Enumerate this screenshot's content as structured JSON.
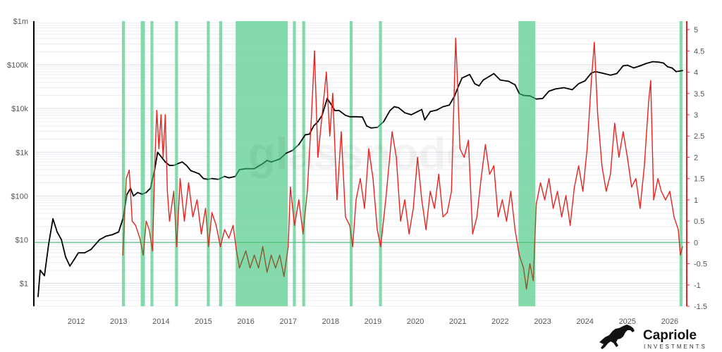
{
  "chart_data": {
    "type": "line",
    "title": "",
    "xlabel": "",
    "ylabel": "",
    "x_ticks": [
      "2012",
      "2013",
      "2014",
      "2015",
      "2016",
      "2017",
      "2018",
      "2019",
      "2020",
      "2021",
      "2022",
      "2023",
      "2024",
      "2025",
      "2026"
    ],
    "xlim": [
      2011.0,
      2026.4
    ],
    "left_axis": {
      "scale": "log",
      "ylim": [
        0.3,
        1000000
      ],
      "tick_values": [
        1,
        10,
        100,
        1000,
        10000,
        100000,
        1000000
      ],
      "tick_labels": [
        "$1",
        "$10",
        "$100",
        "$1k",
        "$10k",
        "$100k",
        "$1m"
      ],
      "color": "#000000"
    },
    "right_axis": {
      "scale": "linear",
      "ylim": [
        -1.5,
        5.2
      ],
      "tick_values": [
        -1.5,
        -1,
        -0.5,
        0,
        0.5,
        1,
        1.5,
        2,
        2.5,
        3,
        3.5,
        4,
        4.5,
        5
      ],
      "tick_labels": [
        "-1.5",
        "-1",
        "-0.5",
        "0",
        "0.5",
        "1",
        "1.5",
        "2",
        "2.5",
        "3",
        "3.5",
        "4",
        "4.5",
        "5"
      ],
      "color": "#e8231f"
    },
    "reference_line": {
      "axis": "right",
      "value": 0,
      "color": "#4cc47a"
    },
    "shaded_regions": [
      [
        2013.08,
        2013.15
      ],
      [
        2013.52,
        2013.62
      ],
      [
        2013.75,
        2013.82
      ],
      [
        2014.33,
        2014.4
      ],
      [
        2015.08,
        2015.15
      ],
      [
        2015.37,
        2015.44
      ],
      [
        2015.76,
        2016.99
      ],
      [
        2017.11,
        2017.18
      ],
      [
        2017.33,
        2017.4
      ],
      [
        2018.45,
        2018.52
      ],
      [
        2019.14,
        2019.21
      ],
      [
        2022.43,
        2022.83
      ],
      [
        2026.23,
        2026.3
      ]
    ],
    "shade_color": "#6fd39b",
    "series": [
      {
        "axis": "left",
        "color": "#000000",
        "highlight_color": "#1f7a4a",
        "points": [
          [
            2011.1,
            0.5
          ],
          [
            2011.15,
            2
          ],
          [
            2011.25,
            1.5
          ],
          [
            2011.35,
            8
          ],
          [
            2011.45,
            30
          ],
          [
            2011.55,
            15
          ],
          [
            2011.65,
            10
          ],
          [
            2011.75,
            4
          ],
          [
            2011.85,
            2.5
          ],
          [
            2011.95,
            3.5
          ],
          [
            2012.05,
            5
          ],
          [
            2012.2,
            5
          ],
          [
            2012.35,
            6
          ],
          [
            2012.55,
            10
          ],
          [
            2012.7,
            12
          ],
          [
            2012.85,
            13
          ],
          [
            2013.0,
            15
          ],
          [
            2013.1,
            30
          ],
          [
            2013.2,
            110
          ],
          [
            2013.28,
            150
          ],
          [
            2013.35,
            100
          ],
          [
            2013.45,
            120
          ],
          [
            2013.55,
            110
          ],
          [
            2013.65,
            120
          ],
          [
            2013.75,
            150
          ],
          [
            2013.85,
            400
          ],
          [
            2013.92,
            1000
          ],
          [
            2014.0,
            800
          ],
          [
            2014.1,
            600
          ],
          [
            2014.2,
            500
          ],
          [
            2014.3,
            500
          ],
          [
            2014.4,
            550
          ],
          [
            2014.5,
            600
          ],
          [
            2014.6,
            500
          ],
          [
            2014.7,
            380
          ],
          [
            2014.8,
            350
          ],
          [
            2014.9,
            320
          ],
          [
            2015.0,
            250
          ],
          [
            2015.1,
            240
          ],
          [
            2015.2,
            250
          ],
          [
            2015.35,
            240
          ],
          [
            2015.5,
            280
          ],
          [
            2015.6,
            260
          ],
          [
            2015.75,
            280
          ],
          [
            2015.85,
            400
          ],
          [
            2016.0,
            420
          ],
          [
            2016.2,
            420
          ],
          [
            2016.4,
            550
          ],
          [
            2016.5,
            650
          ],
          [
            2016.6,
            600
          ],
          [
            2016.8,
            700
          ],
          [
            2016.95,
            950
          ],
          [
            2017.1,
            1100
          ],
          [
            2017.25,
            1500
          ],
          [
            2017.4,
            2500
          ],
          [
            2017.5,
            2600
          ],
          [
            2017.6,
            4000
          ],
          [
            2017.7,
            5000
          ],
          [
            2017.8,
            7000
          ],
          [
            2017.92,
            17000
          ],
          [
            2018.0,
            13000
          ],
          [
            2018.1,
            9000
          ],
          [
            2018.2,
            9000
          ],
          [
            2018.35,
            7000
          ],
          [
            2018.45,
            6500
          ],
          [
            2018.6,
            6500
          ],
          [
            2018.75,
            6400
          ],
          [
            2018.85,
            4000
          ],
          [
            2018.95,
            3600
          ],
          [
            2019.1,
            3700
          ],
          [
            2019.25,
            5000
          ],
          [
            2019.4,
            9000
          ],
          [
            2019.5,
            11000
          ],
          [
            2019.6,
            10500
          ],
          [
            2019.75,
            8000
          ],
          [
            2019.9,
            7200
          ],
          [
            2020.05,
            8500
          ],
          [
            2020.15,
            9500
          ],
          [
            2020.22,
            5500
          ],
          [
            2020.35,
            8500
          ],
          [
            2020.5,
            9200
          ],
          [
            2020.65,
            11000
          ],
          [
            2020.8,
            12000
          ],
          [
            2020.92,
            19000
          ],
          [
            2021.0,
            30000
          ],
          [
            2021.1,
            50000
          ],
          [
            2021.28,
            60000
          ],
          [
            2021.4,
            37000
          ],
          [
            2021.5,
            33000
          ],
          [
            2021.6,
            45000
          ],
          [
            2021.75,
            55000
          ],
          [
            2021.85,
            63000
          ],
          [
            2022.0,
            45000
          ],
          [
            2022.2,
            42000
          ],
          [
            2022.35,
            35000
          ],
          [
            2022.45,
            22000
          ],
          [
            2022.55,
            20000
          ],
          [
            2022.7,
            19500
          ],
          [
            2022.85,
            16500
          ],
          [
            2023.0,
            17000
          ],
          [
            2023.15,
            25000
          ],
          [
            2023.3,
            28000
          ],
          [
            2023.5,
            30000
          ],
          [
            2023.7,
            27000
          ],
          [
            2023.85,
            37000
          ],
          [
            2024.0,
            43000
          ],
          [
            2024.15,
            65000
          ],
          [
            2024.25,
            70000
          ],
          [
            2024.4,
            65000
          ],
          [
            2024.6,
            58000
          ],
          [
            2024.75,
            63000
          ],
          [
            2024.9,
            95000
          ],
          [
            2025.0,
            98000
          ],
          [
            2025.15,
            85000
          ],
          [
            2025.3,
            95000
          ],
          [
            2025.45,
            108000
          ],
          [
            2025.6,
            118000
          ],
          [
            2025.75,
            115000
          ],
          [
            2025.85,
            110000
          ],
          [
            2025.95,
            90000
          ],
          [
            2026.05,
            85000
          ],
          [
            2026.15,
            70000
          ],
          [
            2026.3,
            74000
          ]
        ]
      },
      {
        "axis": "right",
        "color": "#e8231f",
        "highlight_color": "#8b5a2b",
        "points": [
          [
            2013.1,
            -0.3
          ],
          [
            2013.18,
            1.5
          ],
          [
            2013.25,
            1.7
          ],
          [
            2013.32,
            0.5
          ],
          [
            2013.4,
            0.4
          ],
          [
            2013.5,
            0.1
          ],
          [
            2013.58,
            -0.3
          ],
          [
            2013.65,
            0.5
          ],
          [
            2013.72,
            0.3
          ],
          [
            2013.8,
            -0.2
          ],
          [
            2013.85,
            1.8
          ],
          [
            2013.9,
            3.1
          ],
          [
            2013.95,
            2.2
          ],
          [
            2014.0,
            3.0
          ],
          [
            2014.05,
            2.0
          ],
          [
            2014.1,
            3.0
          ],
          [
            2014.15,
            1.2
          ],
          [
            2014.2,
            0.5
          ],
          [
            2014.3,
            1.2
          ],
          [
            2014.37,
            -0.1
          ],
          [
            2014.45,
            1.5
          ],
          [
            2014.55,
            0.5
          ],
          [
            2014.65,
            1.4
          ],
          [
            2014.75,
            0.6
          ],
          [
            2014.85,
            1.0
          ],
          [
            2014.95,
            0.2
          ],
          [
            2015.05,
            0.8
          ],
          [
            2015.12,
            -0.1
          ],
          [
            2015.2,
            0.7
          ],
          [
            2015.3,
            0.4
          ],
          [
            2015.4,
            -0.1
          ],
          [
            2015.5,
            0.3
          ],
          [
            2015.6,
            0.1
          ],
          [
            2015.7,
            0.4
          ],
          [
            2015.78,
            -0.2
          ],
          [
            2015.85,
            -0.6
          ],
          [
            2016.0,
            -0.2
          ],
          [
            2016.1,
            -0.6
          ],
          [
            2016.2,
            -0.3
          ],
          [
            2016.3,
            -0.6
          ],
          [
            2016.4,
            -0.1
          ],
          [
            2016.5,
            -0.7
          ],
          [
            2016.6,
            -0.3
          ],
          [
            2016.7,
            -0.6
          ],
          [
            2016.8,
            -0.3
          ],
          [
            2016.9,
            -0.8
          ],
          [
            2017.0,
            -0.1
          ],
          [
            2017.05,
            1.3
          ],
          [
            2017.15,
            0.4
          ],
          [
            2017.25,
            1.0
          ],
          [
            2017.35,
            0.2
          ],
          [
            2017.45,
            1.2
          ],
          [
            2017.55,
            3.0
          ],
          [
            2017.62,
            4.5
          ],
          [
            2017.7,
            2.0
          ],
          [
            2017.8,
            3.0
          ],
          [
            2017.9,
            4.0
          ],
          [
            2017.98,
            2.5
          ],
          [
            2018.05,
            3.5
          ],
          [
            2018.15,
            1.0
          ],
          [
            2018.25,
            2.6
          ],
          [
            2018.35,
            0.6
          ],
          [
            2018.45,
            0.4
          ],
          [
            2018.52,
            -0.1
          ],
          [
            2018.6,
            1.0
          ],
          [
            2018.7,
            1.5
          ],
          [
            2018.8,
            0.8
          ],
          [
            2018.9,
            2.2
          ],
          [
            2019.0,
            1.5
          ],
          [
            2019.1,
            0.3
          ],
          [
            2019.18,
            -0.1
          ],
          [
            2019.3,
            1.0
          ],
          [
            2019.45,
            2.6
          ],
          [
            2019.55,
            2.0
          ],
          [
            2019.65,
            0.5
          ],
          [
            2019.75,
            1.0
          ],
          [
            2019.85,
            0.2
          ],
          [
            2019.95,
            0.8
          ],
          [
            2020.05,
            2.0
          ],
          [
            2020.15,
            1.0
          ],
          [
            2020.25,
            0.3
          ],
          [
            2020.35,
            1.2
          ],
          [
            2020.45,
            0.8
          ],
          [
            2020.55,
            1.6
          ],
          [
            2020.65,
            0.6
          ],
          [
            2020.75,
            0.7
          ],
          [
            2020.85,
            1.2
          ],
          [
            2020.95,
            4.8
          ],
          [
            2021.0,
            3.6
          ],
          [
            2021.05,
            2.2
          ],
          [
            2021.15,
            2.0
          ],
          [
            2021.25,
            2.4
          ],
          [
            2021.35,
            0.2
          ],
          [
            2021.45,
            0.6
          ],
          [
            2021.55,
            1.5
          ],
          [
            2021.65,
            2.3
          ],
          [
            2021.75,
            1.6
          ],
          [
            2021.85,
            1.8
          ],
          [
            2021.95,
            0.6
          ],
          [
            2022.05,
            1.0
          ],
          [
            2022.15,
            0.5
          ],
          [
            2022.25,
            1.2
          ],
          [
            2022.35,
            0.3
          ],
          [
            2022.45,
            -0.3
          ],
          [
            2022.55,
            -0.6
          ],
          [
            2022.62,
            -1.1
          ],
          [
            2022.7,
            -0.5
          ],
          [
            2022.78,
            -0.9
          ],
          [
            2022.85,
            0.9
          ],
          [
            2022.95,
            1.4
          ],
          [
            2023.05,
            1.0
          ],
          [
            2023.15,
            1.5
          ],
          [
            2023.25,
            0.8
          ],
          [
            2023.35,
            1.2
          ],
          [
            2023.45,
            0.6
          ],
          [
            2023.55,
            1.1
          ],
          [
            2023.65,
            0.4
          ],
          [
            2023.75,
            1.3
          ],
          [
            2023.85,
            1.8
          ],
          [
            2023.95,
            1.2
          ],
          [
            2024.05,
            2.2
          ],
          [
            2024.15,
            3.8
          ],
          [
            2024.22,
            4.7
          ],
          [
            2024.3,
            3.0
          ],
          [
            2024.4,
            1.8
          ],
          [
            2024.5,
            1.2
          ],
          [
            2024.6,
            1.6
          ],
          [
            2024.7,
            2.8
          ],
          [
            2024.8,
            2.0
          ],
          [
            2024.9,
            2.6
          ],
          [
            2025.0,
            2.0
          ],
          [
            2025.1,
            1.3
          ],
          [
            2025.2,
            1.5
          ],
          [
            2025.3,
            0.8
          ],
          [
            2025.4,
            1.8
          ],
          [
            2025.5,
            3.3
          ],
          [
            2025.55,
            3.8
          ],
          [
            2025.62,
            1.0
          ],
          [
            2025.72,
            1.5
          ],
          [
            2025.8,
            1.2
          ],
          [
            2025.9,
            1.0
          ],
          [
            2026.0,
            1.2
          ],
          [
            2026.1,
            0.6
          ],
          [
            2026.2,
            0.3
          ],
          [
            2026.25,
            -0.3
          ],
          [
            2026.3,
            -0.1
          ]
        ]
      }
    ]
  },
  "branding": {
    "watermark": "glassnode",
    "logo_name": "Capriole",
    "logo_sub": "INVESTMENTS"
  }
}
